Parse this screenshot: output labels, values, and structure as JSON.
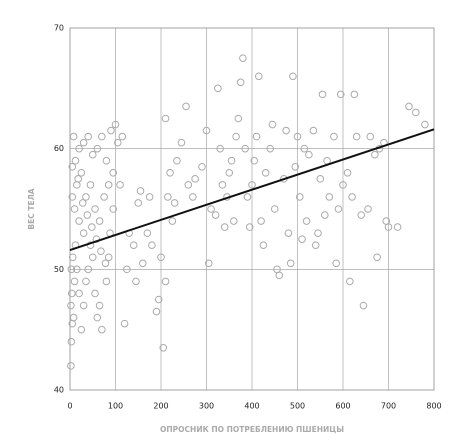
{
  "chart_data": {
    "type": "scatter",
    "x_label": "ОПРОСНИК ПО ПОТРЕБЛЕНИЮ ПШЕНИЦЫ",
    "y_label": "ВЕС ТЕЛА",
    "xlim": [
      0,
      800
    ],
    "xticks": [
      0,
      100,
      200,
      300,
      400,
      500,
      600,
      700,
      800
    ],
    "ylim": [
      40,
      70
    ],
    "yticks": [
      40,
      50,
      60,
      70
    ],
    "grid": true,
    "color": "#aaaaaa",
    "x": [
      2,
      3,
      5,
      2,
      4,
      8,
      10,
      3,
      6,
      12,
      15,
      20,
      25,
      30,
      35,
      40,
      45,
      50,
      55,
      60,
      65,
      70,
      80,
      85,
      30,
      20,
      10,
      5,
      15,
      25,
      35,
      45,
      55,
      65,
      75,
      85,
      95,
      5,
      12,
      20,
      30,
      40,
      50,
      60,
      70,
      80,
      90,
      100,
      8,
      18,
      28,
      38,
      48,
      58,
      68,
      78,
      88,
      95,
      105,
      110,
      115,
      120,
      125,
      130,
      140,
      145,
      150,
      155,
      160,
      170,
      175,
      180,
      190,
      195,
      200,
      205,
      210,
      215,
      220,
      225,
      230,
      210,
      235,
      245,
      255,
      260,
      270,
      275,
      290,
      300,
      305,
      310,
      320,
      325,
      330,
      335,
      340,
      345,
      350,
      355,
      360,
      365,
      370,
      375,
      380,
      385,
      390,
      395,
      400,
      405,
      410,
      415,
      420,
      425,
      430,
      440,
      445,
      450,
      455,
      460,
      470,
      475,
      480,
      485,
      490,
      495,
      500,
      505,
      510,
      515,
      520,
      525,
      535,
      540,
      545,
      550,
      555,
      560,
      565,
      570,
      580,
      585,
      590,
      595,
      600,
      610,
      615,
      620,
      625,
      630,
      640,
      645,
      655,
      660,
      670,
      675,
      680,
      690,
      695,
      700,
      720,
      745,
      760,
      780
    ],
    "values": [
      42,
      44,
      45.5,
      47,
      48,
      46,
      49,
      50,
      51,
      52,
      50,
      48,
      45,
      47,
      49,
      50,
      52,
      51,
      48,
      46,
      47,
      45,
      49,
      51,
      53,
      54,
      55,
      56,
      57,
      58,
      56,
      57,
      55,
      54,
      56,
      57,
      58,
      58.5,
      59,
      60,
      60.5,
      61,
      59.5,
      60,
      61,
      59,
      61.5,
      62,
      61,
      57.5,
      55.5,
      54.5,
      53.5,
      52.5,
      51.5,
      50.5,
      53,
      55,
      60.5,
      57,
      61,
      45.5,
      50,
      53,
      52,
      49,
      55.5,
      56.5,
      50.5,
      53,
      56,
      52,
      46.5,
      47.5,
      51,
      43.5,
      49,
      56,
      58,
      54,
      55.5,
      62.5,
      59,
      60.5,
      63.5,
      57,
      56,
      57.5,
      58.5,
      61.5,
      50.5,
      55,
      54.5,
      65,
      60,
      57,
      53.5,
      56,
      58,
      59,
      54,
      61,
      62.5,
      65.5,
      67.5,
      60,
      56,
      53.5,
      57,
      59,
      61,
      66,
      54,
      52,
      58,
      60,
      62,
      55,
      50,
      49.5,
      57.5,
      61.5,
      53,
      50.5,
      66,
      58.5,
      61,
      56,
      52.5,
      60,
      54,
      59.5,
      61.5,
      52,
      53,
      57.5,
      64.5,
      54.5,
      59,
      56,
      61,
      50.5,
      55,
      64.5,
      57,
      58,
      49,
      56,
      64.5,
      61,
      54.5,
      47,
      55,
      61,
      59.5,
      51,
      60,
      60.5,
      54,
      53.5,
      53.5,
      63.5,
      63,
      62
    ],
    "fit_line": {
      "x": [
        0,
        800
      ],
      "values": [
        51.6,
        61.6
      ],
      "color": "#111111"
    }
  }
}
